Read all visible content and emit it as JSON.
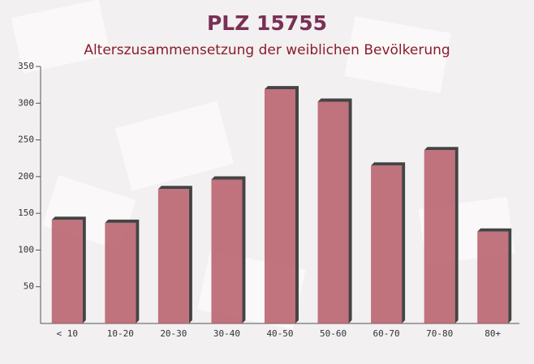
{
  "chart_data": {
    "type": "bar",
    "title": "PLZ 15755",
    "subtitle": "Alterszusammensetzung der weiblichen Bevölkerung",
    "categories": [
      "< 10",
      "10-20",
      "20-30",
      "30-40",
      "40-50",
      "50-60",
      "60-70",
      "70-80",
      "80+"
    ],
    "values": [
      141,
      137,
      183,
      196,
      319,
      302,
      215,
      236,
      125
    ],
    "color": "#b8606c",
    "ylim": [
      0,
      350
    ],
    "yticks": [
      50,
      100,
      150,
      200,
      250,
      300,
      350
    ]
  }
}
